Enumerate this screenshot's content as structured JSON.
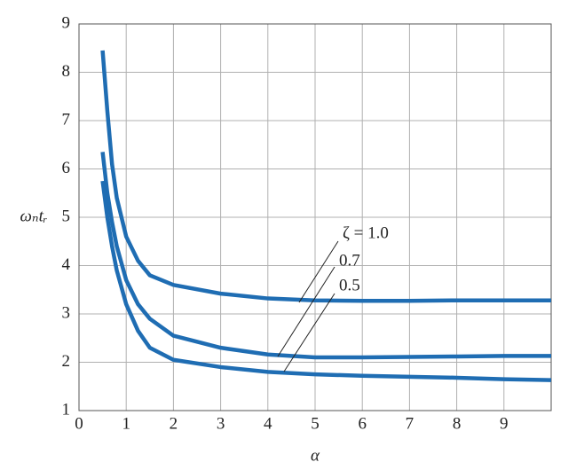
{
  "chart_data": {
    "type": "line",
    "x_label": "α",
    "y_label": "ωₙtᵣ",
    "x": [
      0.5,
      0.6,
      0.7,
      0.8,
      1.0,
      1.25,
      1.5,
      2,
      3,
      4,
      5,
      6,
      7,
      8,
      9,
      10
    ],
    "series": [
      {
        "name": "ζ = 1.0",
        "color": "#1f6db3",
        "values": [
          8.45,
          7.2,
          6.1,
          5.4,
          4.6,
          4.1,
          3.8,
          3.6,
          3.42,
          3.32,
          3.28,
          3.27,
          3.27,
          3.28,
          3.28,
          3.28
        ]
      },
      {
        "name": "0.7",
        "color": "#1f6db3",
        "values": [
          6.35,
          5.5,
          4.9,
          4.4,
          3.7,
          3.2,
          2.9,
          2.55,
          2.3,
          2.16,
          2.1,
          2.1,
          2.11,
          2.12,
          2.13,
          2.13
        ]
      },
      {
        "name": "0.5",
        "color": "#1f6db3",
        "values": [
          5.75,
          5.0,
          4.4,
          3.9,
          3.2,
          2.65,
          2.3,
          2.05,
          1.9,
          1.8,
          1.75,
          1.72,
          1.7,
          1.68,
          1.65,
          1.63
        ]
      }
    ],
    "xlim": [
      0,
      10
    ],
    "xticks": [
      0,
      1,
      2,
      3,
      4,
      5,
      6,
      7,
      8,
      9
    ],
    "ylim": [
      1,
      9
    ],
    "yticks": [
      1,
      2,
      3,
      4,
      5,
      6,
      7,
      8,
      9
    ],
    "grid": true
  }
}
